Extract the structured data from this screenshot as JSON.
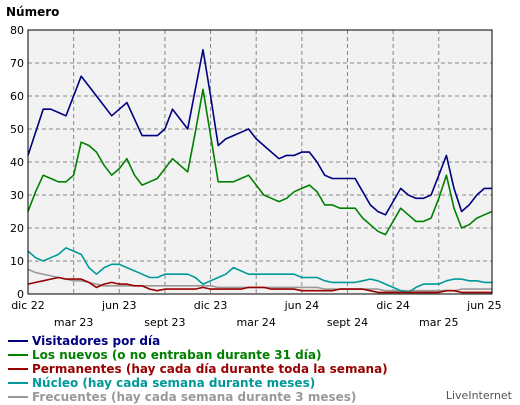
{
  "chart_data": {
    "type": "line",
    "ylabel": "Número",
    "ylim": [
      0,
      80
    ],
    "yticks": [
      0,
      10,
      20,
      30,
      40,
      50,
      60,
      70,
      80
    ],
    "grid": true,
    "legend_position": "bottom-left",
    "x_tick_labels": [
      "dic 22",
      "mar 23",
      "jun 23",
      "sept 23",
      "dic 23",
      "mar 24",
      "jun 24",
      "sept 24",
      "dic 24",
      "mar 25",
      "jun 25"
    ],
    "x": [
      "2022-12-01",
      "2022-12-16",
      "2023-01-01",
      "2023-01-16",
      "2023-02-01",
      "2023-02-16",
      "2023-03-01",
      "2023-03-16",
      "2023-04-01",
      "2023-04-16",
      "2023-05-01",
      "2023-05-16",
      "2023-06-01",
      "2023-06-16",
      "2023-07-01",
      "2023-07-16",
      "2023-08-01",
      "2023-08-16",
      "2023-09-01",
      "2023-09-16",
      "2023-10-01",
      "2023-10-16",
      "2023-11-01",
      "2023-11-16",
      "2023-12-01",
      "2023-12-16",
      "2024-01-01",
      "2024-01-16",
      "2024-02-01",
      "2024-02-16",
      "2024-03-01",
      "2024-03-16",
      "2024-04-01",
      "2024-04-16",
      "2024-05-01",
      "2024-05-16",
      "2024-06-01",
      "2024-06-16",
      "2024-07-01",
      "2024-07-16",
      "2024-08-01",
      "2024-08-16",
      "2024-09-01",
      "2024-09-16",
      "2024-10-01",
      "2024-10-16",
      "2024-11-01",
      "2024-11-16",
      "2024-12-01",
      "2024-12-16",
      "2025-01-01",
      "2025-01-16",
      "2025-02-01",
      "2025-02-16",
      "2025-03-01",
      "2025-03-16",
      "2025-04-01",
      "2025-04-16",
      "2025-05-01",
      "2025-05-16",
      "2025-06-01",
      "2025-06-16"
    ],
    "series": [
      {
        "name": "Visitadores por día",
        "color": "#000080",
        "values": [
          42,
          49,
          56,
          56,
          55,
          54,
          60,
          66,
          63,
          60,
          57,
          54,
          56,
          58,
          53,
          48,
          48,
          48,
          50,
          56,
          53,
          50,
          62,
          74,
          60,
          45,
          47,
          48,
          49,
          50,
          47,
          45,
          43,
          41,
          42,
          42,
          43,
          43,
          40,
          36,
          35,
          35,
          35,
          35,
          31,
          27,
          25,
          24,
          28,
          32,
          30,
          29,
          29,
          30,
          36,
          42,
          32,
          25,
          27,
          30,
          32,
          32
        ]
      },
      {
        "name": "Los nuevos (o no entraban durante 31 día)",
        "color": "#008000",
        "values": [
          25,
          31,
          36,
          35,
          34,
          34,
          36,
          46,
          45,
          43,
          39,
          36,
          38,
          41,
          36,
          33,
          34,
          35,
          38,
          41,
          39,
          37,
          49,
          62,
          48,
          34,
          34,
          34,
          35,
          36,
          33,
          30,
          29,
          28,
          29,
          31,
          32,
          33,
          31,
          27,
          27,
          26,
          26,
          26,
          23,
          21,
          19,
          18,
          22,
          26,
          24,
          22,
          22,
          23,
          29,
          36,
          26,
          20,
          21,
          23,
          24,
          25
        ]
      },
      {
        "name": "Permanentes (hay cada día durante toda la semana)",
        "color": "#990000",
        "values": [
          3,
          3.5,
          4,
          4.5,
          5,
          4.5,
          4.5,
          4.5,
          3.5,
          2,
          3,
          3.5,
          3,
          3,
          2.5,
          2.5,
          1.5,
          1,
          1.5,
          1.5,
          1.5,
          1.5,
          1.5,
          2,
          1.5,
          1.5,
          1.5,
          1.5,
          1.5,
          2,
          2,
          2,
          1.5,
          1.5,
          1.5,
          1.5,
          1,
          1,
          1,
          1,
          1,
          1.5,
          1.5,
          1.5,
          1.5,
          1,
          0.5,
          0.5,
          0.5,
          0.5,
          0.5,
          0.5,
          0.5,
          0.5,
          0.5,
          1,
          1,
          0.5,
          0.5,
          0.5,
          0.5,
          0.5
        ]
      },
      {
        "name": "Núcleo (hay cada semana durante meses)",
        "color": "#009999",
        "values": [
          13,
          11,
          10,
          11,
          12,
          14,
          13,
          12,
          8,
          6,
          8,
          9,
          9,
          8,
          7,
          6,
          5,
          5,
          6,
          6,
          6,
          6,
          5,
          3,
          4,
          5,
          6,
          8,
          7,
          6,
          6,
          6,
          6,
          6,
          6,
          6,
          5,
          5,
          5,
          4,
          3.5,
          3.5,
          3.5,
          3.5,
          4,
          4.5,
          4,
          3,
          2,
          1,
          0.5,
          2,
          3,
          3,
          3,
          4,
          4.5,
          4.5,
          4,
          4,
          3.5,
          3.5
        ]
      },
      {
        "name": "Frecuentes (hay cada semana durante 3 meses)",
        "color": "#999999",
        "values": [
          7.5,
          6.5,
          6,
          5.5,
          5,
          4.5,
          4,
          4,
          3.5,
          3,
          2.5,
          2.5,
          2.5,
          2.5,
          2.5,
          2.5,
          2.5,
          2.5,
          2.5,
          2.5,
          2.5,
          2.5,
          2.5,
          2.5,
          2.5,
          2,
          2,
          2,
          2,
          2,
          2,
          2,
          2,
          2,
          2,
          2,
          2,
          2,
          2,
          1.5,
          1.5,
          1.5,
          1.5,
          1.5,
          1.5,
          1.5,
          1.5,
          1,
          1,
          1,
          1,
          1,
          1,
          1,
          1,
          1,
          1,
          1.5,
          1.5,
          1.5,
          1.5,
          1.5
        ]
      }
    ]
  },
  "watermark": "LiveInternet"
}
